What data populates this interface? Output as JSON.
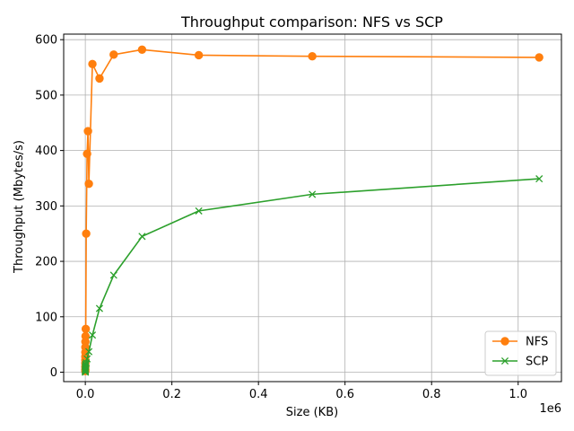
{
  "chart_data": {
    "type": "line",
    "title": "Throughput comparison: NFS vs SCP",
    "xlabel": "Size (KB)",
    "ylabel": "Throughput (Mbytes/s)",
    "x_offset_label": "1e6",
    "xlim": [
      -50000,
      1100000
    ],
    "ylim": [
      -17,
      610
    ],
    "x_ticks": [
      0,
      200000,
      400000,
      600000,
      800000,
      1000000
    ],
    "x_tick_labels": [
      "0.0",
      "0.2",
      "0.4",
      "0.6",
      "0.8",
      "1.0"
    ],
    "y_ticks": [
      0,
      100,
      200,
      300,
      400,
      500,
      600
    ],
    "y_tick_labels": [
      "0",
      "100",
      "200",
      "300",
      "400",
      "500",
      "600"
    ],
    "grid": true,
    "legend_position": "lower-right",
    "series": [
      {
        "name": "NFS",
        "color": "#ff7f0e",
        "marker": "circle",
        "points": [
          [
            1,
            2
          ],
          [
            2,
            5
          ],
          [
            4,
            10
          ],
          [
            8,
            16
          ],
          [
            16,
            22
          ],
          [
            32,
            28
          ],
          [
            64,
            36
          ],
          [
            128,
            45
          ],
          [
            256,
            55
          ],
          [
            512,
            65
          ],
          [
            1024,
            78
          ],
          [
            2048,
            250
          ],
          [
            4096,
            394
          ],
          [
            6144,
            435
          ],
          [
            8192,
            340
          ],
          [
            16384,
            556
          ],
          [
            32768,
            530
          ],
          [
            65536,
            573
          ],
          [
            131072,
            582
          ],
          [
            262144,
            572
          ],
          [
            524288,
            570
          ],
          [
            1048576,
            568
          ]
        ]
      },
      {
        "name": "SCP",
        "color": "#2ca02c",
        "marker": "x",
        "points": [
          [
            1,
            0
          ],
          [
            2,
            1
          ],
          [
            4,
            2
          ],
          [
            8,
            3
          ],
          [
            16,
            4
          ],
          [
            32,
            5
          ],
          [
            64,
            7
          ],
          [
            128,
            8
          ],
          [
            256,
            10
          ],
          [
            512,
            12
          ],
          [
            1024,
            14
          ],
          [
            2048,
            17
          ],
          [
            4096,
            24
          ],
          [
            8192,
            37
          ],
          [
            16384,
            67
          ],
          [
            32768,
            115
          ],
          [
            65536,
            175
          ],
          [
            131072,
            245
          ],
          [
            262144,
            291
          ],
          [
            524288,
            321
          ],
          [
            1048576,
            349
          ]
        ]
      }
    ]
  }
}
